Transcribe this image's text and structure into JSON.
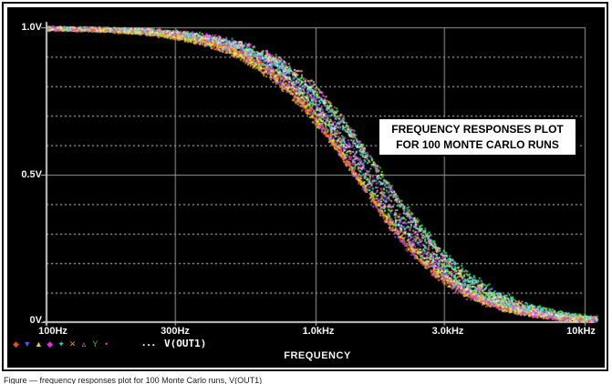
{
  "figure": {
    "caption": "Figure — frequency responses plot for 100 Monte Carlo runs, V(OUT1)"
  },
  "annotation_box": {
    "line1": "FREQUENCY RESPONSES PLOT",
    "line2": "FOR 100 MONTE CARLO RUNS"
  },
  "legend": {
    "markers": [
      {
        "name": "diamond-marker",
        "glyph": "◆",
        "color": "#e04a28"
      },
      {
        "name": "triangle-down-marker",
        "glyph": "▼",
        "color": "#6050e8"
      },
      {
        "name": "triangle-up-marker",
        "glyph": "▲",
        "color": "#e8c832"
      },
      {
        "name": "diamond-marker",
        "glyph": "◆",
        "color": "#d83ad8"
      },
      {
        "name": "star-marker",
        "glyph": "✦",
        "color": "#38c8e0"
      },
      {
        "name": "x-marker",
        "glyph": "✕",
        "color": "#d89028"
      },
      {
        "name": "triangle-open-marker",
        "glyph": "▵",
        "color": "#e89898"
      },
      {
        "name": "y-marker",
        "glyph": "Y",
        "color": "#48c048"
      },
      {
        "name": "dot-marker",
        "glyph": "•",
        "color": "#e040c0"
      }
    ],
    "ellipsis": "...",
    "trace_label": "V(OUT1)"
  },
  "chart_data": {
    "type": "scatter",
    "title": "FREQUENCY RESPONSES PLOT FOR 100 MONTE CARLO RUNS",
    "xlabel": "FREQUENCY",
    "ylabel": "",
    "xscale": "log",
    "xlim_hz": [
      100,
      10000
    ],
    "ylim": [
      0,
      1.0
    ],
    "x_ticks": [
      {
        "label": "100Hz",
        "hz": 100
      },
      {
        "label": "300Hz",
        "hz": 300
      },
      {
        "label": "1.0kHz",
        "hz": 1000
      },
      {
        "label": "3.0kHz",
        "hz": 3000
      },
      {
        "label": "10kHz",
        "hz": 10000
      }
    ],
    "y_ticks": [
      {
        "label": "1.0V",
        "v": 1.0
      },
      {
        "label": "0.5V",
        "v": 0.5
      },
      {
        "label": "0V",
        "v": 0.0
      }
    ],
    "grid": {
      "h_solid_v": [
        1.0,
        0.5
      ],
      "h_dotted_v": [
        0.9,
        0.8,
        0.7,
        0.6,
        0.4,
        0.3,
        0.2,
        0.1
      ],
      "v_solid_hz": [
        300,
        1000,
        3000,
        10000
      ],
      "solid_color": "#9a9a9a",
      "dotted_color": "#e0e0e0",
      "axis_color": "#c8c8c8"
    },
    "trace": {
      "name": "V(OUT1)",
      "runs": 100,
      "description": "100 Monte Carlo runs of a low-pass response falling from 1.0V to ~0V; 0.5V crossing spread approx 1.4kHz-1.8kHz"
    },
    "envelope": {
      "f_hz": [
        100,
        300,
        500,
        700,
        1000,
        1500,
        2000,
        3000,
        5000,
        7000,
        10000
      ],
      "v_min": [
        0.99,
        0.97,
        0.91,
        0.83,
        0.68,
        0.45,
        0.3,
        0.15,
        0.05,
        0.02,
        0.01
      ],
      "v_max": [
        1.0,
        0.98,
        0.95,
        0.9,
        0.79,
        0.6,
        0.43,
        0.24,
        0.09,
        0.04,
        0.02
      ]
    },
    "render_model": {
      "runs": 100,
      "u0_min": 3.14,
      "u0_max": 3.25,
      "tight_cluster_width": 0.015,
      "k_mean": 5.3,
      "k_jitter": 0.8,
      "dot_prob": 0.26,
      "seed": 42
    },
    "palette": [
      "#f7f732",
      "#f73ff7",
      "#3ff7f7",
      "#f74632",
      "#46f746",
      "#5a5af7",
      "#f7a432",
      "#ffffff",
      "#f78cb4",
      "#b464f7",
      "#9cf73c",
      "#f7d478"
    ]
  }
}
